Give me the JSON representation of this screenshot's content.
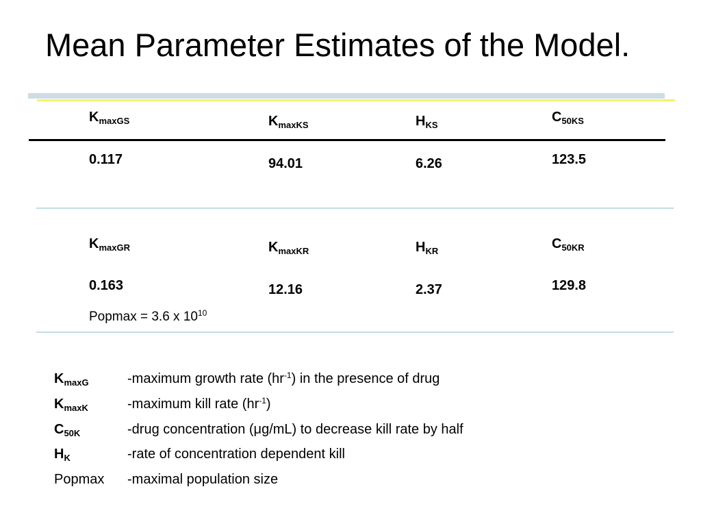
{
  "title": "Mean Parameter Estimates of the Model.",
  "colors": {
    "band": "#cddde3",
    "accent_line": "#f4f36a",
    "light_rule": "#c3dde3",
    "rule": "#000000"
  },
  "row1": {
    "headers": [
      {
        "main": "K",
        "sub": "maxGS"
      },
      {
        "main": "K",
        "sub": "maxKS"
      },
      {
        "main": "H",
        "sub": "KS"
      },
      {
        "main": "C",
        "sub": "50KS"
      }
    ],
    "values": [
      "0.117",
      "94.01",
      "6.26",
      "123.5"
    ]
  },
  "row2": {
    "headers": [
      {
        "main": "K",
        "sub": "maxGR"
      },
      {
        "main": "K",
        "sub": "maxKR"
      },
      {
        "main": "H",
        "sub": "KR"
      },
      {
        "main": "C",
        "sub": "50KR"
      }
    ],
    "values": [
      "0.163",
      "12.16",
      "2.37",
      "129.8"
    ]
  },
  "popmax_note": {
    "text": "Popmax = 3.6 x 10",
    "exponent": "10"
  },
  "legend": [
    {
      "main": "K",
      "sub": "maxG",
      "desc_before": "-maximum growth rate (hr",
      "desc_sup": "-1",
      "desc_after": ") in the presence of drug"
    },
    {
      "main": "K",
      "sub": "maxK",
      "desc_before": "-maximum kill rate (hr",
      "desc_sup": "-1",
      "desc_after": ")"
    },
    {
      "main": "C",
      "sub": "50K",
      "desc_before": "-drug concentration (μg/mL) to decrease kill rate by half"
    },
    {
      "main": "H",
      "sub": "K",
      "desc_before": "-rate of concentration dependent kill"
    },
    {
      "main": "Popmax",
      "desc_before": "-maximal population size"
    }
  ]
}
